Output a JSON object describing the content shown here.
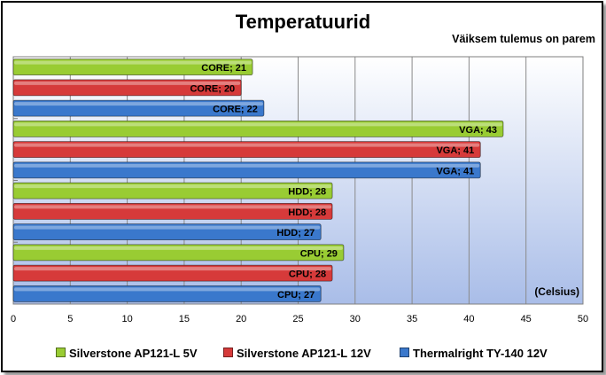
{
  "chart_data": {
    "type": "bar",
    "orientation": "horizontal",
    "title": "Temperatuurid",
    "subtitle": "Väiksem tulemus on parem",
    "unit_label": "(Celsius)",
    "xlim": [
      0,
      50
    ],
    "xticks": [
      0,
      5,
      10,
      15,
      20,
      25,
      30,
      35,
      40,
      45,
      50
    ],
    "grid": true,
    "legend_position": "bottom",
    "categories": [
      "CORE",
      "VGA",
      "HDD",
      "CPU"
    ],
    "series": [
      {
        "name": "Silverstone AP121-L 5V",
        "color": "#99cc33",
        "values": [
          21,
          43,
          28,
          29
        ]
      },
      {
        "name": "Silverstone AP121-L 12V",
        "color": "#d63a3a",
        "values": [
          20,
          41,
          28,
          28
        ]
      },
      {
        "name": "Thermalright TY-140 12V",
        "color": "#3a78cc",
        "values": [
          22,
          41,
          27,
          27
        ]
      }
    ]
  }
}
